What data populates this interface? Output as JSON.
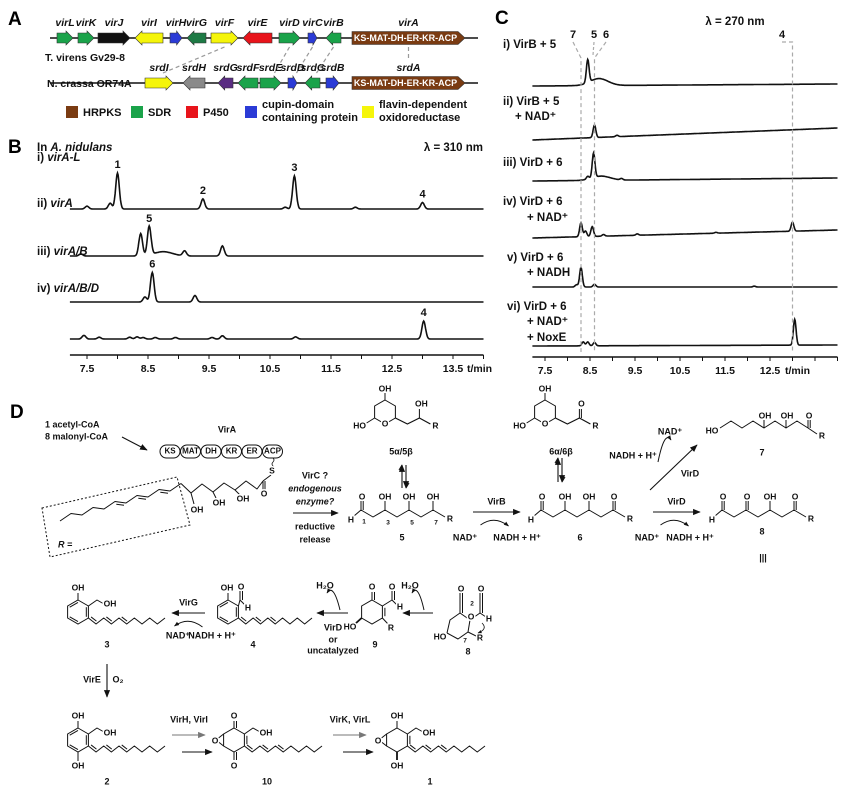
{
  "panel_a": {
    "label": "A",
    "colors": {
      "HRPKS": "#7a3b12",
      "SDR": "#1aa34a",
      "SDR_dark": "#1e7a45",
      "P450": "#e8141b",
      "cupin": "#2b3bd6",
      "flavin": "#f5f50a",
      "other_black": "#111111",
      "other_gray": "#8a8a8a",
      "other_purple": "#5a2d82"
    },
    "rows": [
      {
        "organism": "T. virens Gv29-8",
        "genes": [
          {
            "name": "virL",
            "color": "SDR",
            "dir": "right"
          },
          {
            "name": "virK",
            "color": "SDR",
            "dir": "right"
          },
          {
            "name": "virJ",
            "color": "other_black",
            "dir": "right"
          },
          {
            "name": "virI",
            "color": "flavin",
            "dir": "left"
          },
          {
            "name": "virH",
            "color": "cupin",
            "dir": "right"
          },
          {
            "name": "virG",
            "color": "SDR_dark",
            "dir": "left"
          },
          {
            "name": "virF",
            "color": "flavin",
            "dir": "right"
          },
          {
            "name": "virE",
            "color": "P450",
            "dir": "left"
          },
          {
            "name": "virD",
            "color": "SDR",
            "dir": "right"
          },
          {
            "name": "virC",
            "color": "cupin",
            "dir": "right"
          },
          {
            "name": "virB",
            "color": "SDR",
            "dir": "left"
          },
          {
            "name": "virA",
            "color": "HRPKS",
            "dir": "right",
            "domains": "KS-MAT-DH-ER-KR-ACP"
          }
        ]
      },
      {
        "organism": "N. crassa OR74A",
        "genes": [
          {
            "name": "srdI",
            "color": "flavin",
            "dir": "right"
          },
          {
            "name": "srdH",
            "color": "other_gray",
            "dir": "left"
          },
          {
            "name": "srdG",
            "color": "other_purple",
            "dir": "left"
          },
          {
            "name": "srdF",
            "color": "SDR",
            "dir": "left"
          },
          {
            "name": "srdE",
            "color": "SDR",
            "dir": "right"
          },
          {
            "name": "srdD",
            "color": "cupin",
            "dir": "right"
          },
          {
            "name": "srdC",
            "color": "SDR",
            "dir": "left"
          },
          {
            "name": "srdB",
            "color": "cupin",
            "dir": "right"
          },
          {
            "name": "srdA",
            "color": "HRPKS",
            "dir": "right",
            "domains": "KS-MAT-DH-ER-KR-ACP"
          }
        ]
      }
    ],
    "homologs": [
      [
        "virF",
        "srdI"
      ],
      [
        "virD",
        "srdE"
      ],
      [
        "virC",
        "srdD"
      ],
      [
        "virB",
        "srdC"
      ],
      [
        "virA",
        "srdA"
      ]
    ],
    "legend": [
      {
        "color": "HRPKS",
        "lines": [
          "HRPKS"
        ]
      },
      {
        "color": "SDR",
        "lines": [
          "SDR"
        ]
      },
      {
        "color": "P450",
        "lines": [
          "P450"
        ]
      },
      {
        "color": "cupin",
        "lines": [
          "cupin-domain",
          "containing protein"
        ]
      },
      {
        "color": "flavin",
        "lines": [
          "flavin-dependent",
          "oxidoreductase"
        ]
      }
    ]
  },
  "chart_data": [
    {
      "panel": "B",
      "type": "line",
      "title_prefix": "In ",
      "title_italic": "A. nidulans",
      "annotation": "λ = 310 nm",
      "xlabel": "t/min",
      "xlim": [
        7.2,
        14.0
      ],
      "xticks": [
        7.5,
        8.5,
        9.5,
        10.5,
        11.5,
        12.5,
        13.5
      ],
      "ylabel": "",
      "y_units": "relative absorbance",
      "traces": [
        {
          "prefix": "i) ",
          "name": "virA-L",
          "peaks": [
            {
              "t": 7.5,
              "i": 8
            },
            {
              "t": 7.88,
              "i": 16
            },
            {
              "t": 8.0,
              "i": 100,
              "label": "1"
            },
            {
              "t": 9.4,
              "i": 28,
              "label": "2"
            },
            {
              "t": 10.75,
              "i": 5
            },
            {
              "t": 10.9,
              "i": 92,
              "label": "3"
            },
            {
              "t": 11.9,
              "i": 5
            },
            {
              "t": 13.0,
              "i": 18,
              "label": "4"
            }
          ]
        },
        {
          "prefix": "ii) ",
          "name": "virA",
          "peaks": [
            {
              "t": 7.4,
              "i": 6
            },
            {
              "t": 8.38,
              "i": 62
            },
            {
              "t": 8.52,
              "i": 80,
              "label": "5"
            },
            {
              "t": 8.75,
              "i": 12,
              "w": 0.15
            },
            {
              "t": 9.1,
              "i": 14
            },
            {
              "t": 9.72,
              "i": 28
            }
          ]
        },
        {
          "prefix": "iii) ",
          "name": "virA/B",
          "peaks": [
            {
              "t": 8.45,
              "i": 14
            },
            {
              "t": 8.57,
              "i": 82,
              "label": "6"
            },
            {
              "t": 9.27,
              "i": 18
            }
          ]
        },
        {
          "prefix": "iv) ",
          "name": "virA/B/D",
          "peaks": [
            {
              "t": 7.45,
              "i": 10
            },
            {
              "t": 7.7,
              "i": 5
            },
            {
              "t": 8.2,
              "i": 5
            },
            {
              "t": 8.32,
              "i": 6
            },
            {
              "t": 8.42,
              "i": 4
            },
            {
              "t": 8.62,
              "i": 4
            },
            {
              "t": 8.95,
              "i": 4
            },
            {
              "t": 9.55,
              "i": 4
            },
            {
              "t": 9.72,
              "i": 9
            },
            {
              "t": 10.92,
              "i": 6
            },
            {
              "t": 13.02,
              "i": 50,
              "label": "4"
            }
          ]
        }
      ]
    },
    {
      "panel": "C",
      "type": "line",
      "annotation": "λ = 270 nm",
      "xlabel": "t/min",
      "xlim": [
        7.2,
        14.0
      ],
      "xticks": [
        7.5,
        8.5,
        9.5,
        10.5,
        11.5,
        12.5
      ],
      "ylabel": "",
      "y_units": "relative absorbance",
      "reference_lines": [
        {
          "t": 8.3,
          "label": "7"
        },
        {
          "t": 8.43,
          "label": "5"
        },
        {
          "t": 8.6,
          "label": "6"
        },
        {
          "t": 13.0,
          "label": "4"
        }
      ],
      "traces": [
        {
          "lines": [
            "i) VirB + 5"
          ],
          "peaks": [
            {
              "t": 8.45,
              "i": 82
            },
            {
              "t": 8.7,
              "i": 25,
              "w": 0.2
            }
          ]
        },
        {
          "lines": [
            "ii) VirB + 5",
            "+ NAD⁺"
          ],
          "peaks": [
            {
              "t": 8.6,
              "i": 45
            },
            {
              "t": 9.1,
              "i": 5
            }
          ]
        },
        {
          "lines": [
            "iii) VirD + 6"
          ],
          "peaks": [
            {
              "t": 8.45,
              "i": 10
            },
            {
              "t": 8.58,
              "i": 88
            },
            {
              "t": 8.75,
              "i": 15,
              "w": 0.2
            },
            {
              "t": 9.2,
              "i": 5
            }
          ]
        },
        {
          "lines": [
            "iv) VirD + 6",
            "+ NAD⁺"
          ],
          "peaks": [
            {
              "t": 8.3,
              "i": 50
            },
            {
              "t": 8.4,
              "i": 20
            },
            {
              "t": 8.55,
              "i": 35
            },
            {
              "t": 8.8,
              "i": 6
            },
            {
              "t": 9.55,
              "i": 5
            },
            {
              "t": 11.3,
              "i": 3
            },
            {
              "t": 13.0,
              "i": 32
            }
          ]
        },
        {
          "lines": [
            "v) VirD + 6",
            "+ NADH"
          ],
          "peaks": [
            {
              "t": 8.2,
              "i": 8
            },
            {
              "t": 8.3,
              "i": 70
            },
            {
              "t": 8.6,
              "i": 10
            },
            {
              "t": 12.15,
              "i": 3
            }
          ]
        },
        {
          "lines": [
            "vi) VirD + 6",
            "+ NAD⁺",
            "+ NoxE"
          ],
          "peaks": [
            {
              "t": 8.35,
              "i": 14
            },
            {
              "t": 8.45,
              "i": 14
            },
            {
              "t": 8.6,
              "i": 12
            },
            {
              "t": 13.05,
              "i": 92
            }
          ]
        }
      ]
    }
  ],
  "panel_d": {
    "label": "D",
    "substrates": [
      "1 acetyl-CoA",
      "8 malonyl-CoA"
    ],
    "pks": {
      "name": "VirA",
      "domains": [
        "KS",
        "MAT",
        "DH",
        "KR",
        "ER",
        "ACP"
      ],
      "atoms": [
        "S",
        "O",
        "OH",
        "OH",
        "OH"
      ],
      "r_label": "R ="
    },
    "release": [
      "VirC ?",
      "endogenous",
      "enzyme?",
      "reductive",
      "release"
    ],
    "cpd_5ab": {
      "label": "5α/5β",
      "atoms": [
        "OH",
        "HO",
        "O",
        "OH",
        "R"
      ]
    },
    "cpd_5": {
      "label": "5",
      "atoms": [
        "O",
        "OH",
        "OH",
        "OH",
        "H",
        "R"
      ],
      "positions": [
        "1",
        "3",
        "5",
        "7"
      ]
    },
    "step_virB": {
      "enzyme": "VirB",
      "cofactor_in": "NAD⁺",
      "cofactor_out": "NADH + H⁺"
    },
    "cpd_6ab": {
      "label": "6α/6β",
      "atoms": [
        "OH",
        "HO",
        "O",
        "O",
        "R"
      ]
    },
    "cpd_6": {
      "label": "6",
      "atoms": [
        "O",
        "OH",
        "OH",
        "O",
        "H",
        "R"
      ]
    },
    "step_virD_ox": {
      "enzyme": "VirD",
      "cofactor_in": "NAD⁺",
      "cofactor_out": "NADH + H⁺"
    },
    "step_virD_red": {
      "enzyme": "VirD",
      "cofactor_in": "NADH + H⁺",
      "cofactor_out": "NAD⁺"
    },
    "cpd_7": {
      "label": "7",
      "atoms": [
        "HO",
        "OH",
        "OH",
        "O",
        "R"
      ]
    },
    "cpd_8": {
      "label": "8",
      "atoms": [
        "O",
        "O",
        "OH",
        "O",
        "H",
        "R"
      ]
    },
    "equiv_symbol": "|||",
    "cpd_8_cyclic": {
      "label": "8",
      "atoms": [
        "O",
        "O",
        "H",
        "HO",
        "O",
        "R"
      ],
      "positions": [
        "2",
        "7"
      ]
    },
    "step_dehydration_1": {
      "product": "H₂O"
    },
    "cpd_9": {
      "label": "9",
      "atoms": [
        "O",
        "O",
        "H",
        "HO",
        "R"
      ]
    },
    "step_aromatization": {
      "product": "H₂O",
      "enzyme_lines": [
        "VirD",
        "or",
        "uncatalyzed"
      ]
    },
    "cpd_4": {
      "label": "4",
      "atoms": [
        "OH",
        "O",
        "H"
      ]
    },
    "step_virG": {
      "enzyme": "VirG",
      "cofactor_in": "NADH + H⁺",
      "cofactor_out": "NAD⁺"
    },
    "cpd_3": {
      "label": "3",
      "atoms": [
        "OH",
        "OH"
      ]
    },
    "step_virE": {
      "enzyme": "VirE",
      "cosubstrate": "O₂"
    },
    "cpd_2": {
      "label": "2",
      "atoms": [
        "OH",
        "OH",
        "OH"
      ]
    },
    "step_virHI": {
      "enzymes": "VirH, VirI"
    },
    "cpd_10": {
      "label": "10",
      "atoms": [
        "O",
        "OH",
        "O",
        "O"
      ]
    },
    "step_virKL": {
      "enzymes": "VirK, VirL"
    },
    "cpd_1": {
      "label": "1",
      "atoms": [
        "OH",
        "OH",
        "O",
        "OH"
      ]
    }
  }
}
